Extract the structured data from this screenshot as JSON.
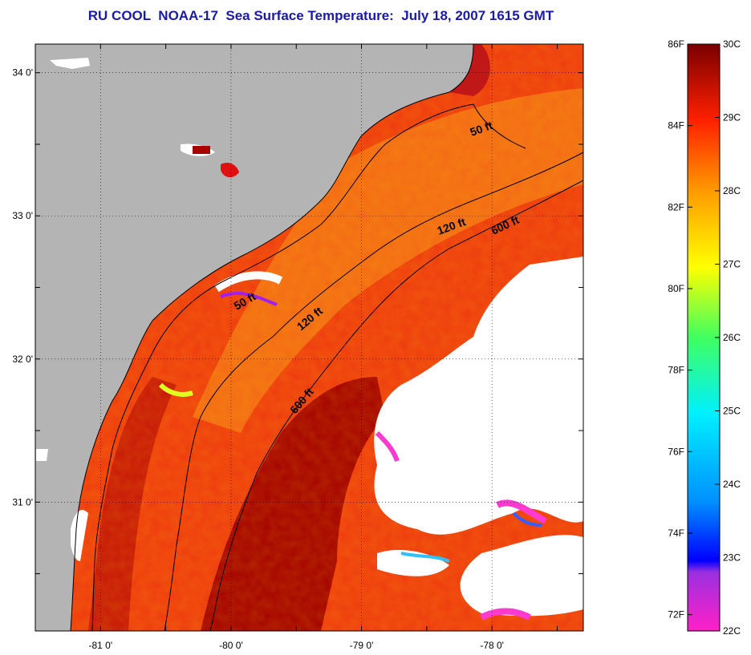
{
  "title": "RU COOL  NOAA-17  Sea Surface Temperature:  July 18, 2007 1615 GMT",
  "map": {
    "lat_labels": [
      {
        "label": "34 0'",
        "lat": 34.0
      },
      {
        "label": "33 0'",
        "lat": 33.0
      },
      {
        "label": "32 0'",
        "lat": 32.0
      },
      {
        "label": "31 0'",
        "lat": 31.0
      }
    ],
    "lon_labels": [
      {
        "label": "-81 0'",
        "lon": -81.0
      },
      {
        "label": "-80 0'",
        "lon": -80.0
      },
      {
        "label": "-79 0'",
        "lon": -79.0
      },
      {
        "label": "-78 0'",
        "lon": -78.0
      }
    ],
    "lat_range": [
      30.1,
      34.2
    ],
    "lon_range": [
      -81.5,
      -77.3
    ],
    "depth_contours": [
      {
        "label": "50 ft",
        "depth_ft": 50
      },
      {
        "label": "50 ft",
        "depth_ft": 50
      },
      {
        "label": "120 ft",
        "depth_ft": 120
      },
      {
        "label": "120 ft",
        "depth_ft": 120
      },
      {
        "label": "600 ft",
        "depth_ft": 600
      },
      {
        "label": "600 ft",
        "depth_ft": 600
      }
    ],
    "colors": {
      "land": "#b4b4b4",
      "cloud": "#ffffff",
      "warm_water": "#ee3010",
      "hot_water": "#a80000",
      "title": "#1a1aa8"
    }
  },
  "colorbar": {
    "celsius": [
      {
        "label": "30C",
        "value": 30
      },
      {
        "label": "29C",
        "value": 29
      },
      {
        "label": "28C",
        "value": 28
      },
      {
        "label": "27C",
        "value": 27
      },
      {
        "label": "26C",
        "value": 26
      },
      {
        "label": "25C",
        "value": 25
      },
      {
        "label": "24C",
        "value": 24
      },
      {
        "label": "23C",
        "value": 23
      },
      {
        "label": "22C",
        "value": 22
      }
    ],
    "fahrenheit": [
      {
        "label": "86F",
        "value": 86
      },
      {
        "label": "84F",
        "value": 84
      },
      {
        "label": "82F",
        "value": 82
      },
      {
        "label": "80F",
        "value": 80
      },
      {
        "label": "78F",
        "value": 78
      },
      {
        "label": "76F",
        "value": 76
      },
      {
        "label": "74F",
        "value": 74
      },
      {
        "label": "72F",
        "value": 72
      }
    ],
    "range_c": [
      22,
      30
    ]
  }
}
